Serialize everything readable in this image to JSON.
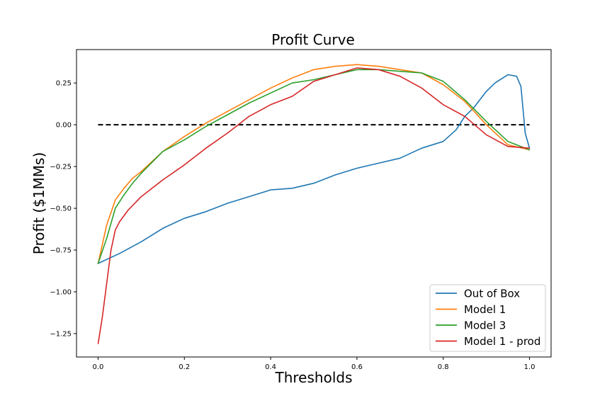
{
  "chart_data": {
    "type": "line",
    "title": "Profit Curve",
    "xlabel": "Thresholds",
    "ylabel": "Profit ($1MMs)",
    "xlim": [
      -0.05,
      1.05
    ],
    "ylim": [
      -1.39,
      0.45
    ],
    "xticks": [
      0.0,
      0.2,
      0.4,
      0.6,
      0.8,
      1.0
    ],
    "xtick_labels": [
      "0.0",
      "0.2",
      "0.4",
      "0.6",
      "0.8",
      "1.0"
    ],
    "yticks": [
      0.25,
      0.0,
      -0.25,
      -0.5,
      -0.75,
      -1.0,
      -1.25
    ],
    "ytick_labels": [
      "0.25",
      "0.00",
      "−0.25",
      "−0.50",
      "−0.75",
      "−1.00",
      "−1.25"
    ],
    "grid": false,
    "legend_position": "bottom-right",
    "baseline": {
      "y": 0.0,
      "x_from": 0.0,
      "x_to": 1.0,
      "style": "dashed",
      "color": "#000000"
    },
    "series": [
      {
        "name": "Out of Box",
        "color": "#1f77b4",
        "x": [
          0.0,
          0.05,
          0.1,
          0.15,
          0.2,
          0.25,
          0.3,
          0.35,
          0.4,
          0.45,
          0.5,
          0.55,
          0.6,
          0.65,
          0.7,
          0.75,
          0.8,
          0.83,
          0.85,
          0.87,
          0.9,
          0.92,
          0.95,
          0.97,
          0.98,
          0.99,
          1.0
        ],
        "y": [
          -0.83,
          -0.77,
          -0.7,
          -0.62,
          -0.56,
          -0.52,
          -0.47,
          -0.43,
          -0.39,
          -0.38,
          -0.35,
          -0.3,
          -0.26,
          -0.23,
          -0.2,
          -0.14,
          -0.1,
          -0.03,
          0.05,
          0.1,
          0.2,
          0.25,
          0.3,
          0.29,
          0.23,
          -0.05,
          -0.14
        ]
      },
      {
        "name": "Model 1",
        "color": "#ff7f0e",
        "x": [
          0.0,
          0.02,
          0.04,
          0.06,
          0.08,
          0.1,
          0.15,
          0.2,
          0.25,
          0.3,
          0.35,
          0.4,
          0.45,
          0.5,
          0.55,
          0.6,
          0.65,
          0.7,
          0.75,
          0.8,
          0.85,
          0.9,
          0.95,
          1.0
        ],
        "y": [
          -0.83,
          -0.6,
          -0.45,
          -0.38,
          -0.32,
          -0.28,
          -0.16,
          -0.07,
          0.01,
          0.08,
          0.15,
          0.22,
          0.28,
          0.33,
          0.35,
          0.36,
          0.35,
          0.33,
          0.31,
          0.24,
          0.14,
          0.0,
          -0.12,
          -0.15
        ]
      },
      {
        "name": "Model 3",
        "color": "#2ca02c",
        "x": [
          0.0,
          0.02,
          0.04,
          0.06,
          0.08,
          0.1,
          0.15,
          0.2,
          0.25,
          0.3,
          0.35,
          0.4,
          0.45,
          0.5,
          0.55,
          0.6,
          0.65,
          0.7,
          0.75,
          0.8,
          0.85,
          0.9,
          0.95,
          1.0
        ],
        "y": [
          -0.83,
          -0.68,
          -0.5,
          -0.42,
          -0.35,
          -0.29,
          -0.16,
          -0.09,
          -0.01,
          0.06,
          0.13,
          0.19,
          0.25,
          0.27,
          0.3,
          0.33,
          0.33,
          0.32,
          0.31,
          0.26,
          0.15,
          0.02,
          -0.1,
          -0.15
        ]
      },
      {
        "name": "Model 1 - prod",
        "color": "#d62728",
        "x": [
          0.0,
          0.01,
          0.02,
          0.03,
          0.04,
          0.05,
          0.07,
          0.1,
          0.15,
          0.2,
          0.25,
          0.3,
          0.35,
          0.4,
          0.45,
          0.5,
          0.55,
          0.6,
          0.65,
          0.7,
          0.75,
          0.8,
          0.85,
          0.9,
          0.95,
          1.0
        ],
        "y": [
          -1.31,
          -1.15,
          -0.95,
          -0.75,
          -0.63,
          -0.58,
          -0.51,
          -0.43,
          -0.33,
          -0.24,
          -0.14,
          -0.05,
          0.05,
          0.12,
          0.17,
          0.26,
          0.3,
          0.34,
          0.33,
          0.29,
          0.22,
          0.12,
          0.05,
          -0.06,
          -0.13,
          -0.14
        ]
      }
    ]
  }
}
